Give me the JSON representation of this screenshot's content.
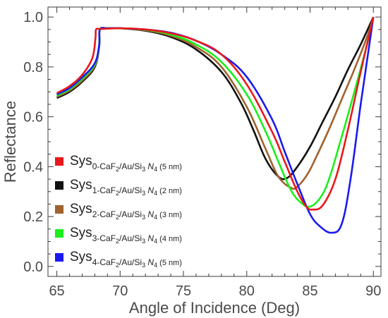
{
  "chart_data": {
    "type": "line",
    "title": "",
    "xlabel": "Angle of Incidence (Deg)",
    "ylabel": "Reflectance",
    "xlim": [
      64.3,
      90.6
    ],
    "ylim": [
      -0.04,
      1.04
    ],
    "xticks": [
      65,
      70,
      75,
      80,
      85,
      90
    ],
    "yticks": [
      0.0,
      0.2,
      0.4,
      0.6,
      0.8,
      1.0
    ],
    "xtick_labels": [
      "65",
      "70",
      "75",
      "80",
      "85",
      "90"
    ],
    "ytick_labels": [
      "0.0",
      "0.2",
      "0.4",
      "0.6",
      "0.8",
      "1.0"
    ],
    "grid": false,
    "legend_position": "left",
    "series": [
      {
        "name": "Sys0-CaF2/Au/Si3 N4 (5 nm)",
        "legend": {
          "main": "Sys",
          "sub": "0-CaF",
          "sub2": "2",
          "sub3": "/Au/Si",
          "sub4": "3",
          "n": "N",
          "n_sub": "4",
          "tail": "(5 nm)"
        },
        "color": "#e8191b",
        "x": [
          65,
          66,
          67,
          67.8,
          68.05,
          68.1,
          68.5,
          70,
          72,
          74,
          76,
          78,
          80,
          82,
          83,
          84,
          84.7,
          85.2,
          86,
          87,
          88,
          89,
          90
        ],
        "y": [
          0.695,
          0.723,
          0.768,
          0.835,
          0.915,
          0.95,
          0.952,
          0.955,
          0.95,
          0.935,
          0.905,
          0.85,
          0.73,
          0.54,
          0.42,
          0.3,
          0.24,
          0.228,
          0.245,
          0.35,
          0.55,
          0.78,
          1.0
        ]
      },
      {
        "name": "Sys1-CaF2/Au/Si3 N4 (2 nm)",
        "legend": {
          "main": "Sys",
          "sub": "1-CaF",
          "sub2": "2",
          "sub3": "/Au/Si",
          "sub4": "3",
          "n": "N",
          "n_sub": "4",
          "tail": "(2 nm)"
        },
        "color": "#111111",
        "x": [
          65,
          66,
          67,
          68,
          68.35,
          68.4,
          69,
          70,
          72,
          74,
          76,
          78,
          79.5,
          80.5,
          81.5,
          82.5,
          83.2,
          84,
          85,
          86,
          87,
          88,
          89,
          90
        ],
        "y": [
          0.675,
          0.7,
          0.74,
          0.8,
          0.885,
          0.95,
          0.955,
          0.955,
          0.945,
          0.92,
          0.87,
          0.78,
          0.66,
          0.55,
          0.43,
          0.36,
          0.355,
          0.4,
          0.48,
          0.58,
          0.68,
          0.79,
          0.89,
          1.0
        ]
      },
      {
        "name": "Sys2-CaF2/Au/Si3 N4 (3 nm)",
        "legend": {
          "main": "Sys",
          "sub": "2-CaF",
          "sub2": "2",
          "sub3": "/Au/Si",
          "sub4": "3",
          "n": "N",
          "n_sub": "4",
          "tail": "(3 nm)"
        },
        "color": "#a0622e",
        "x": [
          65,
          66,
          67,
          68,
          68.35,
          68.4,
          69,
          70,
          72,
          74,
          76,
          78,
          80,
          81.5,
          82.5,
          83.5,
          84,
          84.8,
          85.5,
          86.5,
          87.5,
          88.5,
          89.5,
          90
        ],
        "y": [
          0.68,
          0.705,
          0.745,
          0.805,
          0.885,
          0.95,
          0.955,
          0.955,
          0.947,
          0.925,
          0.88,
          0.8,
          0.64,
          0.47,
          0.36,
          0.315,
          0.32,
          0.37,
          0.44,
          0.55,
          0.67,
          0.79,
          0.92,
          1.0
        ]
      },
      {
        "name": "Sys3-CaF2/Au/Si3 N4 (4 nm)",
        "legend": {
          "main": "Sys",
          "sub": "3-CaF",
          "sub2": "2",
          "sub3": "/Au/Si",
          "sub4": "3",
          "n": "N",
          "n_sub": "4",
          "tail": "(4 nm)"
        },
        "color": "#1bef1b",
        "x": [
          65,
          66,
          67,
          68,
          68.35,
          68.4,
          69,
          70,
          72,
          74,
          76,
          78,
          80,
          81.5,
          82.5,
          83.5,
          84.3,
          85,
          85.8,
          86.5,
          87.5,
          88.5,
          89.5,
          90
        ],
        "y": [
          0.685,
          0.71,
          0.752,
          0.81,
          0.888,
          0.95,
          0.955,
          0.955,
          0.949,
          0.93,
          0.89,
          0.82,
          0.69,
          0.54,
          0.42,
          0.305,
          0.255,
          0.24,
          0.275,
          0.35,
          0.52,
          0.7,
          0.89,
          1.0
        ]
      },
      {
        "name": "Sys4-CaF2/Au/Si3 N4 (5 nm)",
        "legend": {
          "main": "Sys",
          "sub": "4-CaF",
          "sub2": "2",
          "sub3": "/Au/Si",
          "sub4": "3",
          "n": "N",
          "n_sub": "4",
          "tail": "(5 nm)"
        },
        "color": "#1a1af2",
        "x": [
          65,
          66,
          67,
          68,
          68.35,
          68.4,
          69,
          70,
          72,
          74,
          76,
          78,
          80,
          82,
          83,
          84,
          85,
          85.8,
          86.7,
          87.5,
          88.2,
          89,
          89.6,
          90
        ],
        "y": [
          0.69,
          0.715,
          0.758,
          0.815,
          0.89,
          0.95,
          0.955,
          0.955,
          0.95,
          0.937,
          0.905,
          0.85,
          0.76,
          0.59,
          0.46,
          0.33,
          0.21,
          0.16,
          0.135,
          0.17,
          0.35,
          0.65,
          0.86,
          1.0
        ]
      }
    ]
  }
}
